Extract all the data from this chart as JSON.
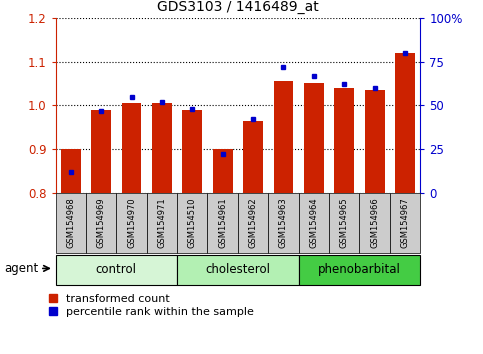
{
  "title": "GDS3103 / 1416489_at",
  "samples": [
    "GSM154968",
    "GSM154969",
    "GSM154970",
    "GSM154971",
    "GSM154510",
    "GSM154961",
    "GSM154962",
    "GSM154963",
    "GSM154964",
    "GSM154965",
    "GSM154966",
    "GSM154967"
  ],
  "red_values": [
    0.9,
    0.99,
    1.005,
    1.005,
    0.99,
    0.9,
    0.965,
    1.055,
    1.05,
    1.04,
    1.035,
    1.12
  ],
  "blue_percentile": [
    12,
    47,
    55,
    52,
    48,
    22,
    42,
    72,
    67,
    62,
    60,
    80
  ],
  "ylim_left": [
    0.8,
    1.2
  ],
  "ylim_right": [
    0,
    100
  ],
  "yticks_left": [
    0.8,
    0.9,
    1.0,
    1.1,
    1.2
  ],
  "yticks_right": [
    0,
    25,
    50,
    75,
    100
  ],
  "ytick_labels_right": [
    "0",
    "25",
    "50",
    "75",
    "100%"
  ],
  "groups": [
    {
      "label": "control",
      "start": 0,
      "end": 3,
      "color": "#d6f5d6"
    },
    {
      "label": "cholesterol",
      "start": 4,
      "end": 7,
      "color": "#b3f0b3"
    },
    {
      "label": "phenobarbital",
      "start": 8,
      "end": 11,
      "color": "#44cc44"
    }
  ],
  "bar_color": "#cc2200",
  "dot_color": "#0000cc",
  "bar_bottom": 0.8,
  "bar_width": 0.65,
  "legend_red": "transformed count",
  "legend_blue": "percentile rank within the sample",
  "left_tick_color": "#cc2200",
  "right_tick_color": "#0000cc"
}
